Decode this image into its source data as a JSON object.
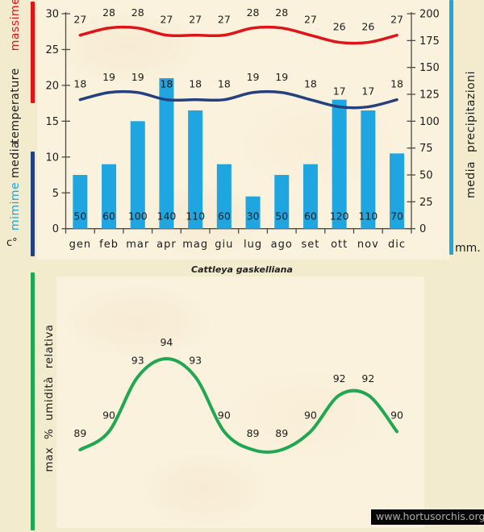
{
  "page": {
    "caption": "Cattleya gaskelliana",
    "watermark": "www.hortusorchis.org"
  },
  "left_sidebar": {
    "massime": "massime",
    "temperature": "temperature",
    "media": "media",
    "mimime": "mimime",
    "unit": "c°"
  },
  "right_sidebar": {
    "title": "media precipitazioni",
    "unit": "mm."
  },
  "bottom_sidebar": {
    "title": "max % umidità relativa"
  },
  "colors": {
    "page_background": "#F2EBCE",
    "panel_background": "#FAF2DD",
    "max_temp_line": "#E01418",
    "min_temp_line": "#24407E",
    "precip_bar": "#1FA5DF",
    "humidity_line": "#1FA751",
    "axis": "#4A4A4A",
    "label_text": "#1c1c1c"
  },
  "chart_data": [
    {
      "type": "bar",
      "subtype": "combo-bar-line",
      "title": "",
      "categories": [
        "gen",
        "feb",
        "mar",
        "apr",
        "mag",
        "giu",
        "lug",
        "ago",
        "set",
        "ott",
        "nov",
        "dic"
      ],
      "series": [
        {
          "name": "massime",
          "kind": "line",
          "color": "#E01418",
          "values": [
            27,
            28,
            28,
            27,
            27,
            27,
            28,
            28,
            27,
            26,
            26,
            27
          ]
        },
        {
          "name": "mimime",
          "kind": "line",
          "color": "#24407E",
          "values": [
            18,
            19,
            19,
            18,
            18,
            18,
            19,
            19,
            18,
            17,
            17,
            18
          ]
        },
        {
          "name": "media precipitazioni",
          "kind": "bar",
          "color": "#1FA5DF",
          "values": [
            50,
            60,
            100,
            140,
            110,
            60,
            30,
            50,
            60,
            120,
            110,
            70
          ]
        }
      ],
      "left_axis": {
        "label": "media temperature c°",
        "min": 0,
        "max": 30,
        "ticks": [
          0,
          5,
          10,
          15,
          20,
          25,
          30
        ]
      },
      "right_axis": {
        "label": "media precipitazioni mm.",
        "min": 0,
        "max": 200,
        "ticks": [
          0,
          25,
          50,
          75,
          100,
          125,
          150,
          175,
          200
        ]
      },
      "grid": false,
      "legend": "none"
    },
    {
      "type": "line",
      "title": "",
      "categories": [
        "gen",
        "feb",
        "mar",
        "apr",
        "mag",
        "giu",
        "lug",
        "ago",
        "set",
        "ott",
        "nov",
        "dic"
      ],
      "series": [
        {
          "name": "max % umidità relativa",
          "kind": "line",
          "color": "#1FA751",
          "values": [
            89,
            90,
            93,
            94,
            93,
            90,
            89,
            89,
            90,
            92,
            92,
            90
          ]
        }
      ],
      "ylabel": "max % umidità relativa",
      "axes_visible": false,
      "grid": false,
      "legend": "none"
    }
  ]
}
